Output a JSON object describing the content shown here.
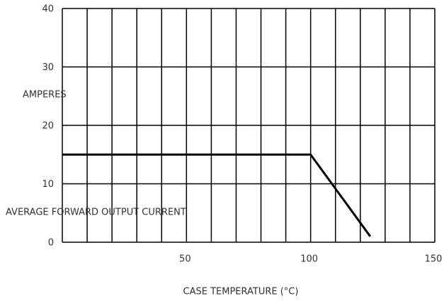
{
  "chart_data": {
    "type": "line",
    "xlabel": "CASE TEMPERATURE (°C)",
    "ylabel": [
      "AMPERES",
      "AVERAGE FORWARD OUTPUT CURRENT"
    ],
    "xlim": [
      0,
      150
    ],
    "ylim": [
      0,
      40
    ],
    "xticks": [
      50,
      100,
      150
    ],
    "xgrid": [
      0,
      10,
      20,
      30,
      40,
      50,
      60,
      70,
      80,
      90,
      100,
      110,
      120,
      130,
      140,
      150
    ],
    "yticks": [
      0,
      10,
      20,
      30,
      40
    ],
    "grid": true,
    "series": [
      {
        "color": "#000000",
        "x": [
          0,
          100,
          124
        ],
        "values": [
          15,
          15,
          1
        ]
      }
    ]
  }
}
